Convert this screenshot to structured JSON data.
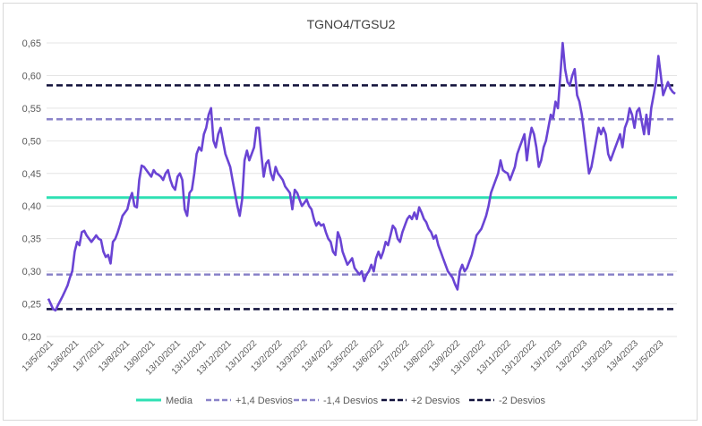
{
  "chart_data": {
    "type": "line",
    "title": "TGNO4/TGSU2",
    "xlabel": "",
    "ylabel": "",
    "ylim": [
      0.2,
      0.65
    ],
    "yticks": [
      "0,20",
      "0,25",
      "0,30",
      "0,35",
      "0,40",
      "0,45",
      "0,50",
      "0,55",
      "0,60",
      "0,65"
    ],
    "ytick_values": [
      0.2,
      0.25,
      0.3,
      0.35,
      0.4,
      0.45,
      0.5,
      0.55,
      0.6,
      0.65
    ],
    "xticks": [
      "13/5/2021",
      "13/6/2021",
      "13/7/2021",
      "13/8/2021",
      "13/9/2021",
      "13/10/2021",
      "13/11/2021",
      "13/12/2021",
      "13/1/2022",
      "13/2/2022",
      "13/3/2022",
      "13/4/2022",
      "13/5/2022",
      "13/6/2022",
      "13/7/2022",
      "13/8/2022",
      "13/9/2022",
      "13/10/2022",
      "13/11/2022",
      "13/12/2022",
      "13/1/2023",
      "13/2/2023",
      "13/3/2023",
      "13/4/2023",
      "13/5/2023"
    ],
    "grid": "horizontal",
    "legend_position": "bottom",
    "series": [
      {
        "name": "TGNO4/TGSU2",
        "color": "#6a44d4",
        "values": [
          0.258,
          0.25,
          0.242,
          0.24,
          0.248,
          0.255,
          0.262,
          0.27,
          0.278,
          0.29,
          0.3,
          0.33,
          0.345,
          0.34,
          0.36,
          0.362,
          0.355,
          0.35,
          0.345,
          0.35,
          0.355,
          0.35,
          0.348,
          0.33,
          0.322,
          0.325,
          0.312,
          0.345,
          0.35,
          0.36,
          0.372,
          0.385,
          0.39,
          0.395,
          0.41,
          0.42,
          0.4,
          0.398,
          0.44,
          0.462,
          0.46,
          0.455,
          0.45,
          0.445,
          0.455,
          0.45,
          0.448,
          0.445,
          0.44,
          0.45,
          0.455,
          0.44,
          0.43,
          0.425,
          0.445,
          0.45,
          0.44,
          0.395,
          0.385,
          0.42,
          0.425,
          0.45,
          0.48,
          0.49,
          0.485,
          0.51,
          0.52,
          0.54,
          0.55,
          0.5,
          0.49,
          0.51,
          0.52,
          0.5,
          0.48,
          0.47,
          0.46,
          0.44,
          0.42,
          0.4,
          0.385,
          0.41,
          0.47,
          0.485,
          0.47,
          0.48,
          0.49,
          0.52,
          0.52,
          0.48,
          0.445,
          0.465,
          0.47,
          0.45,
          0.44,
          0.46,
          0.45,
          0.445,
          0.44,
          0.43,
          0.425,
          0.42,
          0.395,
          0.425,
          0.42,
          0.41,
          0.4,
          0.405,
          0.41,
          0.4,
          0.395,
          0.38,
          0.37,
          0.375,
          0.37,
          0.372,
          0.36,
          0.35,
          0.345,
          0.33,
          0.325,
          0.36,
          0.35,
          0.33,
          0.32,
          0.31,
          0.315,
          0.32,
          0.305,
          0.3,
          0.295,
          0.3,
          0.285,
          0.295,
          0.3,
          0.31,
          0.3,
          0.32,
          0.33,
          0.32,
          0.33,
          0.345,
          0.34,
          0.355,
          0.37,
          0.365,
          0.35,
          0.345,
          0.36,
          0.37,
          0.38,
          0.385,
          0.38,
          0.39,
          0.38,
          0.398,
          0.39,
          0.38,
          0.375,
          0.365,
          0.36,
          0.35,
          0.355,
          0.34,
          0.33,
          0.32,
          0.31,
          0.3,
          0.295,
          0.29,
          0.28,
          0.272,
          0.3,
          0.31,
          0.3,
          0.305,
          0.315,
          0.325,
          0.34,
          0.355,
          0.36,
          0.365,
          0.375,
          0.385,
          0.4,
          0.42,
          0.43,
          0.44,
          0.45,
          0.47,
          0.455,
          0.452,
          0.45,
          0.44,
          0.45,
          0.46,
          0.48,
          0.49,
          0.5,
          0.51,
          0.47,
          0.5,
          0.52,
          0.51,
          0.49,
          0.46,
          0.47,
          0.49,
          0.5,
          0.52,
          0.54,
          0.535,
          0.56,
          0.55,
          0.6,
          0.65,
          0.61,
          0.59,
          0.585,
          0.6,
          0.61,
          0.57,
          0.56,
          0.54,
          0.51,
          0.48,
          0.45,
          0.46,
          0.48,
          0.5,
          0.52,
          0.51,
          0.52,
          0.51,
          0.48,
          0.47,
          0.48,
          0.49,
          0.5,
          0.51,
          0.49,
          0.52,
          0.53,
          0.55,
          0.54,
          0.52,
          0.545,
          0.55,
          0.53,
          0.51,
          0.54,
          0.51,
          0.55,
          0.57,
          0.59,
          0.63,
          0.6,
          0.57,
          0.58,
          0.59,
          0.58,
          0.575,
          0.572
        ]
      }
    ],
    "reference_lines": [
      {
        "name": "Media",
        "value": 0.413,
        "color": "#2ee0b3",
        "dash": "solid"
      },
      {
        "name": "+1,4 Desvios",
        "value": 0.533,
        "color": "#8a83c9",
        "dash": "dashed"
      },
      {
        "name": "-1,4 Desvios",
        "value": 0.295,
        "color": "#8a83c9",
        "dash": "dashed"
      },
      {
        "name": "+2 Desvios",
        "value": 0.585,
        "color": "#10103a",
        "dash": "dashed"
      },
      {
        "name": "-2 Desvios",
        "value": 0.242,
        "color": "#10103a",
        "dash": "dashed"
      }
    ]
  }
}
